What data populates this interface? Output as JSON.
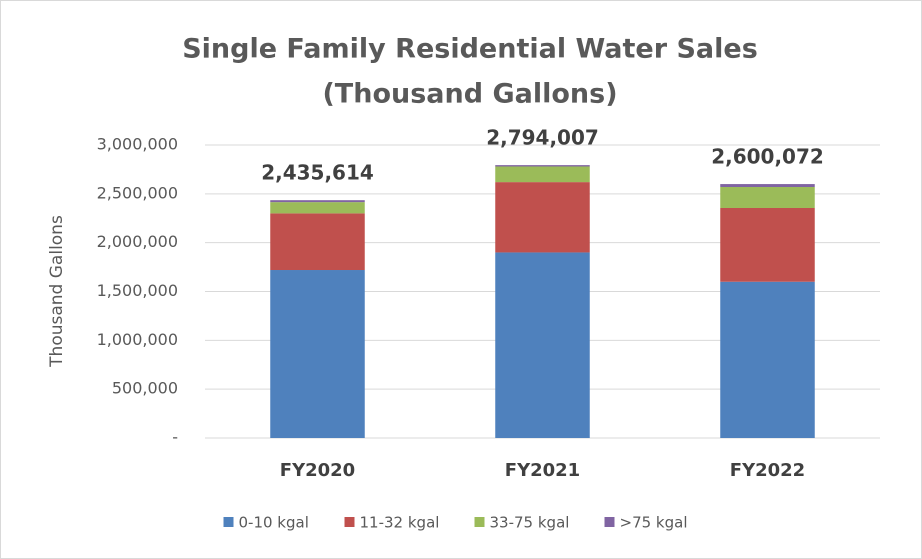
{
  "chart_data": {
    "type": "stacked_bar",
    "title": "Single Family Residential Water Sales",
    "subtitle": "(Thousand  Gallons)",
    "y_label": "Thousand Gallons",
    "categories": [
      "FY2020",
      "FY2021",
      "FY2022"
    ],
    "series": [
      {
        "name": "0-10 kgal",
        "color": "#4f81bd",
        "values": [
          1720000,
          1900000,
          1600000
        ]
      },
      {
        "name": "11-32 kgal",
        "color": "#c0504d",
        "values": [
          580000,
          720000,
          755000
        ]
      },
      {
        "name": "33-75 kgal",
        "color": "#9bbb59",
        "values": [
          115000,
          160000,
          215000
        ]
      },
      {
        "name": ">75 kgal",
        "color": "#8064a2",
        "values": [
          20000,
          14000,
          30000
        ]
      }
    ],
    "totals": [
      2435614,
      2794007,
      2600072
    ],
    "value_labels": [
      "2,435,614",
      "2,794,007",
      "2,600,072"
    ],
    "ylim": [
      0,
      3000000
    ],
    "yticks": [
      {
        "value": 0,
        "label": "-"
      },
      {
        "value": 500000,
        "label": "500,000"
      },
      {
        "value": 1000000,
        "label": "1,000,000"
      },
      {
        "value": 1500000,
        "label": "1,500,000"
      },
      {
        "value": 2000000,
        "label": "2,000,000"
      },
      {
        "value": 2500000,
        "label": "2,500,000"
      },
      {
        "value": 3000000,
        "label": "3,000,000"
      }
    ],
    "grid": true,
    "legend": "bottom"
  }
}
